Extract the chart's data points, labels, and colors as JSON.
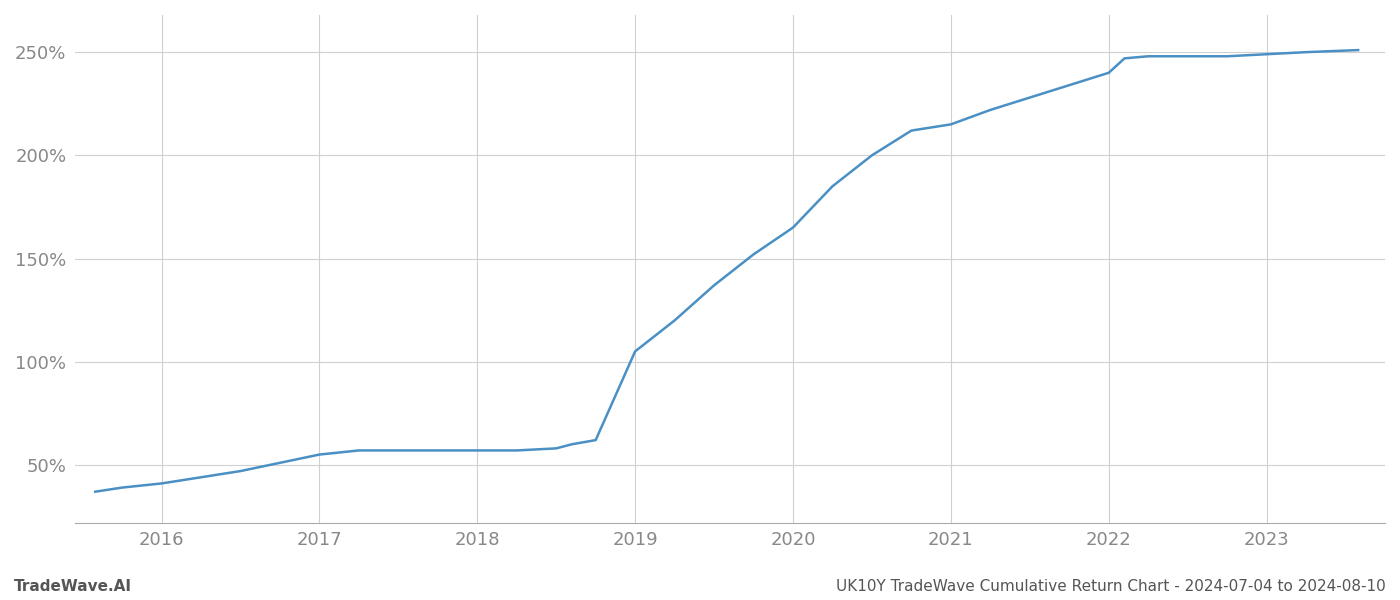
{
  "title_right": "UK10Y TradeWave Cumulative Return Chart - 2024-07-04 to 2024-08-10",
  "title_left": "TradeWave.AI",
  "line_color": "#4a90c4",
  "background_color": "#ffffff",
  "grid_color": "#d0d0d0",
  "x_years": [
    2015.58,
    2015.75,
    2016.0,
    2016.25,
    2016.5,
    2016.75,
    2017.0,
    2017.25,
    2017.5,
    2017.75,
    2018.0,
    2018.25,
    2018.5,
    2018.6,
    2018.75,
    2019.0,
    2019.25,
    2019.5,
    2019.75,
    2020.0,
    2020.25,
    2020.5,
    2020.75,
    2021.0,
    2021.25,
    2021.5,
    2021.75,
    2022.0,
    2022.1,
    2022.25,
    2022.5,
    2022.75,
    2023.0,
    2023.25,
    2023.58
  ],
  "y_values": [
    37,
    39,
    41,
    44,
    47,
    51,
    55,
    57,
    57,
    57,
    57,
    57,
    58,
    60,
    62,
    105,
    120,
    137,
    152,
    165,
    185,
    200,
    212,
    215,
    222,
    228,
    234,
    240,
    247,
    248,
    248,
    248,
    249,
    250,
    251
  ],
  "xlim": [
    2015.45,
    2023.75
  ],
  "ylim": [
    22,
    268
  ],
  "yticks": [
    50,
    100,
    150,
    200,
    250
  ],
  "xticks": [
    2016,
    2017,
    2018,
    2019,
    2020,
    2021,
    2022,
    2023
  ],
  "line_width": 1.8,
  "tick_label_color": "#888888",
  "tick_label_fontsize": 13,
  "footer_fontsize": 11,
  "footer_color": "#555555"
}
